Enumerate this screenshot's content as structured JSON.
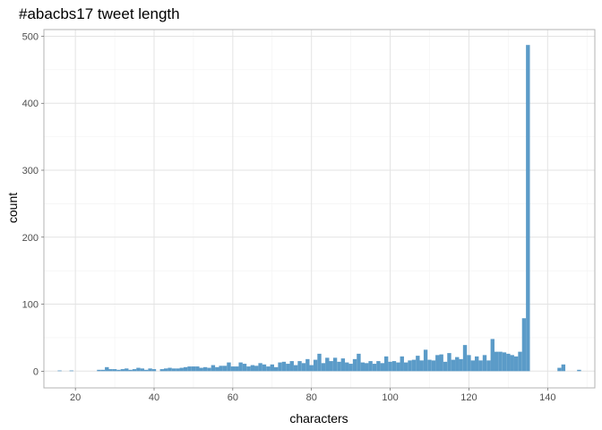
{
  "chart_data": {
    "type": "bar",
    "title": "#abacbs17 tweet length",
    "xlabel": "characters",
    "ylabel": "count",
    "xlim": [
      12,
      152
    ],
    "ylim": [
      -25,
      510
    ],
    "x_ticks": [
      20,
      40,
      60,
      80,
      100,
      120,
      140
    ],
    "y_ticks": [
      0,
      100,
      200,
      300,
      400,
      500
    ],
    "x_minor_ticks": [
      30,
      50,
      70,
      90,
      110,
      130,
      150
    ],
    "y_minor_ticks": [
      50,
      150,
      250,
      350,
      450
    ],
    "grid": true,
    "bar_color": "#5b9bc8",
    "bins": [
      {
        "x": 16,
        "count": 1
      },
      {
        "x": 19,
        "count": 1
      },
      {
        "x": 26,
        "count": 2
      },
      {
        "x": 27,
        "count": 2
      },
      {
        "x": 28,
        "count": 6
      },
      {
        "x": 29,
        "count": 3
      },
      {
        "x": 30,
        "count": 3
      },
      {
        "x": 31,
        "count": 2
      },
      {
        "x": 32,
        "count": 3
      },
      {
        "x": 33,
        "count": 4
      },
      {
        "x": 34,
        "count": 2
      },
      {
        "x": 35,
        "count": 3
      },
      {
        "x": 36,
        "count": 5
      },
      {
        "x": 37,
        "count": 4
      },
      {
        "x": 38,
        "count": 2
      },
      {
        "x": 39,
        "count": 4
      },
      {
        "x": 40,
        "count": 3
      },
      {
        "x": 42,
        "count": 3
      },
      {
        "x": 43,
        "count": 4
      },
      {
        "x": 44,
        "count": 5
      },
      {
        "x": 45,
        "count": 4
      },
      {
        "x": 46,
        "count": 4
      },
      {
        "x": 47,
        "count": 5
      },
      {
        "x": 48,
        "count": 6
      },
      {
        "x": 49,
        "count": 7
      },
      {
        "x": 50,
        "count": 7
      },
      {
        "x": 51,
        "count": 7
      },
      {
        "x": 52,
        "count": 5
      },
      {
        "x": 53,
        "count": 6
      },
      {
        "x": 54,
        "count": 5
      },
      {
        "x": 55,
        "count": 9
      },
      {
        "x": 56,
        "count": 6
      },
      {
        "x": 57,
        "count": 8
      },
      {
        "x": 58,
        "count": 8
      },
      {
        "x": 59,
        "count": 13
      },
      {
        "x": 60,
        "count": 7
      },
      {
        "x": 61,
        "count": 7
      },
      {
        "x": 62,
        "count": 13
      },
      {
        "x": 63,
        "count": 11
      },
      {
        "x": 64,
        "count": 7
      },
      {
        "x": 65,
        "count": 9
      },
      {
        "x": 66,
        "count": 8
      },
      {
        "x": 67,
        "count": 12
      },
      {
        "x": 68,
        "count": 10
      },
      {
        "x": 69,
        "count": 7
      },
      {
        "x": 70,
        "count": 10
      },
      {
        "x": 71,
        "count": 6
      },
      {
        "x": 72,
        "count": 13
      },
      {
        "x": 73,
        "count": 14
      },
      {
        "x": 74,
        "count": 11
      },
      {
        "x": 75,
        "count": 15
      },
      {
        "x": 76,
        "count": 9
      },
      {
        "x": 77,
        "count": 15
      },
      {
        "x": 78,
        "count": 12
      },
      {
        "x": 79,
        "count": 18
      },
      {
        "x": 80,
        "count": 9
      },
      {
        "x": 81,
        "count": 17
      },
      {
        "x": 82,
        "count": 26
      },
      {
        "x": 83,
        "count": 12
      },
      {
        "x": 84,
        "count": 20
      },
      {
        "x": 85,
        "count": 15
      },
      {
        "x": 86,
        "count": 20
      },
      {
        "x": 87,
        "count": 14
      },
      {
        "x": 88,
        "count": 19
      },
      {
        "x": 89,
        "count": 13
      },
      {
        "x": 90,
        "count": 11
      },
      {
        "x": 91,
        "count": 18
      },
      {
        "x": 92,
        "count": 26
      },
      {
        "x": 93,
        "count": 13
      },
      {
        "x": 94,
        "count": 12
      },
      {
        "x": 95,
        "count": 15
      },
      {
        "x": 96,
        "count": 11
      },
      {
        "x": 97,
        "count": 15
      },
      {
        "x": 98,
        "count": 12
      },
      {
        "x": 99,
        "count": 22
      },
      {
        "x": 100,
        "count": 14
      },
      {
        "x": 101,
        "count": 15
      },
      {
        "x": 102,
        "count": 13
      },
      {
        "x": 103,
        "count": 22
      },
      {
        "x": 104,
        "count": 13
      },
      {
        "x": 105,
        "count": 16
      },
      {
        "x": 106,
        "count": 17
      },
      {
        "x": 107,
        "count": 23
      },
      {
        "x": 108,
        "count": 16
      },
      {
        "x": 109,
        "count": 32
      },
      {
        "x": 110,
        "count": 17
      },
      {
        "x": 111,
        "count": 16
      },
      {
        "x": 112,
        "count": 24
      },
      {
        "x": 113,
        "count": 25
      },
      {
        "x": 114,
        "count": 14
      },
      {
        "x": 115,
        "count": 27
      },
      {
        "x": 116,
        "count": 17
      },
      {
        "x": 117,
        "count": 21
      },
      {
        "x": 118,
        "count": 18
      },
      {
        "x": 119,
        "count": 39
      },
      {
        "x": 120,
        "count": 24
      },
      {
        "x": 121,
        "count": 16
      },
      {
        "x": 122,
        "count": 22
      },
      {
        "x": 123,
        "count": 16
      },
      {
        "x": 124,
        "count": 24
      },
      {
        "x": 125,
        "count": 16
      },
      {
        "x": 126,
        "count": 48
      },
      {
        "x": 127,
        "count": 29
      },
      {
        "x": 128,
        "count": 29
      },
      {
        "x": 129,
        "count": 28
      },
      {
        "x": 130,
        "count": 26
      },
      {
        "x": 131,
        "count": 24
      },
      {
        "x": 132,
        "count": 22
      },
      {
        "x": 133,
        "count": 29
      },
      {
        "x": 134,
        "count": 79
      },
      {
        "x": 135,
        "count": 487
      },
      {
        "x": 143,
        "count": 5
      },
      {
        "x": 144,
        "count": 10
      },
      {
        "x": 148,
        "count": 2
      }
    ]
  }
}
